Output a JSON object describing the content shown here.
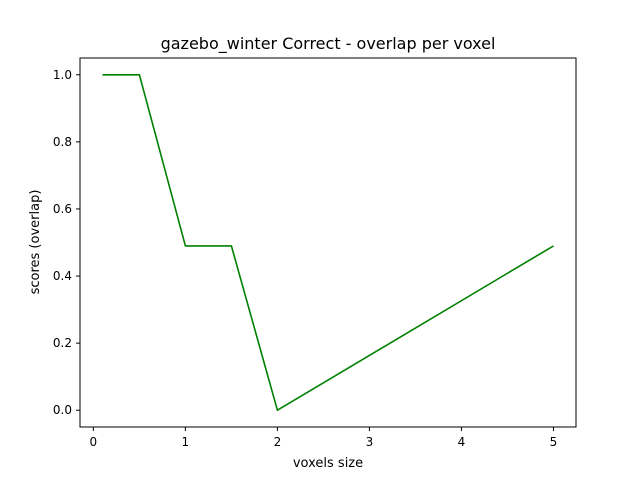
{
  "chart_data": {
    "type": "line",
    "title": "gazebo_winter Correct - overlap per voxel",
    "xlabel": "voxels size",
    "ylabel": "scores (overlap)",
    "xlim": [
      -0.145,
      5.245
    ],
    "ylim": [
      -0.05,
      1.05
    ],
    "x_ticks": [
      0,
      1,
      2,
      3,
      4,
      5
    ],
    "y_ticks": [
      0.0,
      0.2,
      0.4,
      0.6,
      0.8,
      1.0
    ],
    "x_tick_labels": [
      "0",
      "1",
      "2",
      "3",
      "4",
      "5"
    ],
    "y_tick_labels": [
      "0.0",
      "0.2",
      "0.4",
      "0.6",
      "0.8",
      "1.0"
    ],
    "grid": false,
    "series": [
      {
        "color": "#008000",
        "x": [
          0.1,
          0.5,
          1.0,
          1.5,
          2.0,
          5.0
        ],
        "y": [
          1.0,
          1.0,
          0.49,
          0.49,
          0.0,
          0.49
        ]
      }
    ]
  }
}
